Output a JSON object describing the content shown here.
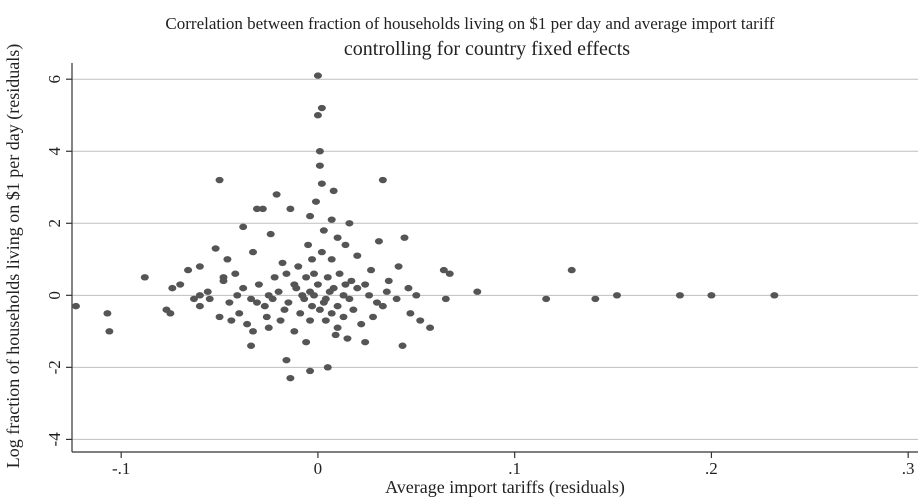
{
  "chart_data": {
    "type": "scatter",
    "title": "Correlation between fraction of households living on $1 per day and average import tariff",
    "subtitle": "controlling for country fixed effects",
    "xlabel": "Average import tariffs (residuals)",
    "ylabel": "Log fraction of households living on $1 per day (residuals)",
    "xlim": [
      -0.125,
      0.305
    ],
    "ylim": [
      -4.35,
      6.45
    ],
    "x_ticks": [
      -0.1,
      0,
      0.1,
      0.2,
      0.3
    ],
    "x_tick_labels": [
      "-.1",
      "0",
      ".1",
      ".2",
      ".3"
    ],
    "y_ticks": [
      -4,
      -2,
      0,
      2,
      4,
      6
    ],
    "y_tick_labels": [
      "-4",
      "-2",
      "0",
      "2",
      "4",
      "6"
    ],
    "grid": true,
    "point_color": "#555555",
    "points": [
      [
        0.0,
        6.1
      ],
      [
        0.002,
        5.2
      ],
      [
        0.0,
        5.0
      ],
      [
        0.001,
        4.0
      ],
      [
        -0.05,
        3.2
      ],
      [
        0.033,
        3.2
      ],
      [
        0.001,
        3.6
      ],
      [
        0.002,
        3.1
      ],
      [
        0.008,
        2.9
      ],
      [
        -0.021,
        2.8
      ],
      [
        -0.001,
        2.6
      ],
      [
        -0.031,
        2.4
      ],
      [
        -0.028,
        2.4
      ],
      [
        -0.014,
        2.4
      ],
      [
        -0.004,
        2.2
      ],
      [
        0.007,
        2.1
      ],
      [
        0.016,
        2.0
      ],
      [
        -0.038,
        1.9
      ],
      [
        0.003,
        1.8
      ],
      [
        -0.024,
        1.7
      ],
      [
        0.01,
        1.6
      ],
      [
        0.031,
        1.5
      ],
      [
        0.044,
        1.6
      ],
      [
        -0.005,
        1.4
      ],
      [
        0.014,
        1.4
      ],
      [
        -0.052,
        1.3
      ],
      [
        -0.033,
        1.2
      ],
      [
        0.002,
        1.2
      ],
      [
        0.007,
        1.0
      ],
      [
        -0.046,
        1.0
      ],
      [
        0.02,
        1.1
      ],
      [
        -0.06,
        0.8
      ],
      [
        -0.066,
        0.7
      ],
      [
        -0.042,
        0.6
      ],
      [
        0.064,
        0.7
      ],
      [
        0.067,
        0.6
      ],
      [
        0.129,
        0.7
      ],
      [
        -0.088,
        0.5
      ],
      [
        -0.074,
        0.2
      ],
      [
        -0.06,
        0.0
      ],
      [
        -0.055,
        -0.1
      ],
      [
        -0.045,
        -0.2
      ],
      [
        -0.034,
        -0.1
      ],
      [
        -0.02,
        0.1
      ],
      [
        -0.012,
        0.3
      ],
      [
        -0.008,
        0.0
      ],
      [
        -0.004,
        0.1
      ],
      [
        0.0,
        0.3
      ],
      [
        0.004,
        -0.1
      ],
      [
        0.008,
        0.2
      ],
      [
        0.013,
        0.0
      ],
      [
        0.02,
        0.2
      ],
      [
        0.026,
        0.0
      ],
      [
        0.036,
        0.4
      ],
      [
        0.046,
        0.2
      ],
      [
        -0.003,
        -0.3
      ],
      [
        -0.017,
        -0.4
      ],
      [
        -0.027,
        -0.3
      ],
      [
        -0.04,
        -0.5
      ],
      [
        0.018,
        -0.4
      ],
      [
        0.028,
        -0.6
      ],
      [
        -0.004,
        -0.7
      ],
      [
        0.004,
        -0.7
      ],
      [
        0.01,
        -0.9
      ],
      [
        -0.012,
        -1.0
      ],
      [
        -0.025,
        -0.9
      ],
      [
        -0.033,
        -1.0
      ],
      [
        0.015,
        -1.2
      ],
      [
        0.024,
        -1.3
      ],
      [
        -0.034,
        -1.4
      ],
      [
        0.043,
        -1.4
      ],
      [
        -0.016,
        -1.8
      ],
      [
        -0.014,
        -2.3
      ],
      [
        -0.004,
        -2.1
      ],
      [
        0.005,
        -2.0
      ],
      [
        -0.123,
        -0.3
      ],
      [
        -0.107,
        -0.5
      ],
      [
        -0.106,
        -1.0
      ],
      [
        -0.077,
        -0.4
      ],
      [
        -0.075,
        -0.5
      ],
      [
        -0.06,
        -0.3
      ],
      [
        0.047,
        -0.5
      ],
      [
        0.052,
        -0.7
      ],
      [
        0.057,
        -0.9
      ],
      [
        0.065,
        -0.1
      ],
      [
        0.081,
        0.1
      ],
      [
        0.116,
        -0.1
      ],
      [
        0.141,
        -0.1
      ],
      [
        0.152,
        0.0
      ],
      [
        0.184,
        0.0
      ],
      [
        0.2,
        0.0
      ],
      [
        0.232,
        0.0
      ],
      [
        -0.07,
        0.3
      ],
      [
        -0.048,
        0.5
      ],
      [
        -0.038,
        0.2
      ],
      [
        -0.03,
        0.3
      ],
      [
        -0.022,
        0.5
      ],
      [
        -0.016,
        0.6
      ],
      [
        -0.01,
        0.8
      ],
      [
        -0.006,
        0.5
      ],
      [
        -0.002,
        0.6
      ],
      [
        0.005,
        0.5
      ],
      [
        0.011,
        0.6
      ],
      [
        0.017,
        0.4
      ],
      [
        0.024,
        0.3
      ],
      [
        -0.05,
        -0.6
      ],
      [
        -0.044,
        -0.7
      ],
      [
        -0.036,
        -0.8
      ],
      [
        -0.026,
        -0.6
      ],
      [
        -0.019,
        -0.7
      ],
      [
        -0.009,
        -0.5
      ],
      [
        0.001,
        -0.4
      ],
      [
        0.007,
        -0.5
      ],
      [
        0.013,
        -0.6
      ],
      [
        0.022,
        -0.8
      ],
      [
        -0.056,
        0.1
      ],
      [
        -0.041,
        0.0
      ],
      [
        -0.031,
        -0.2
      ],
      [
        -0.023,
        -0.1
      ],
      [
        -0.015,
        -0.2
      ],
      [
        -0.007,
        -0.1
      ],
      [
        0.003,
        -0.2
      ],
      [
        0.01,
        -0.3
      ],
      [
        0.016,
        -0.1
      ],
      [
        0.03,
        -0.2
      ],
      [
        0.04,
        -0.1
      ],
      [
        0.05,
        0.0
      ],
      [
        -0.002,
        0.0
      ],
      [
        0.006,
        0.1
      ],
      [
        -0.011,
        0.2
      ],
      [
        0.014,
        0.3
      ],
      [
        -0.025,
        0.0
      ],
      [
        0.035,
        0.1
      ],
      [
        -0.048,
        0.4
      ],
      [
        0.027,
        0.7
      ],
      [
        -0.018,
        0.9
      ],
      [
        0.009,
        -1.1
      ],
      [
        -0.006,
        -1.3
      ],
      [
        0.033,
        -0.3
      ],
      [
        -0.063,
        -0.1
      ],
      [
        0.041,
        0.8
      ],
      [
        -0.003,
        1.0
      ]
    ]
  }
}
